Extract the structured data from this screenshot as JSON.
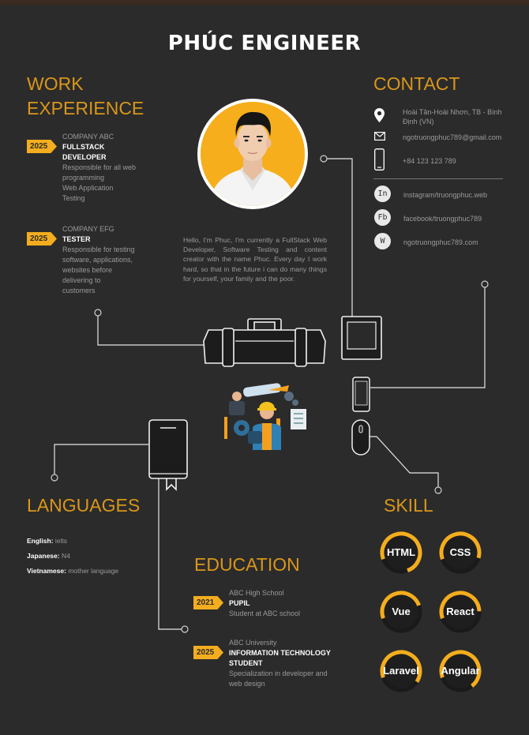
{
  "header": {
    "name": "PHÚC ENGINEER"
  },
  "work": {
    "title_line1": "WORK",
    "title_line2": "EXPERIENCE",
    "items": [
      {
        "year": "2025",
        "company": "COMPANY ABC",
        "role_line1": "FULLSTACK",
        "role_line2": "DEVELOPER",
        "desc": [
          "Responsible for all web",
          "programming",
          "Web Application",
          "Testing"
        ]
      },
      {
        "year": "2025",
        "company": "COMPANY EFG",
        "role_line1": "TESTER",
        "role_line2": "",
        "desc": [
          "Responsible for testing",
          "software, applications,",
          "websites before",
          "delivering to",
          "customers"
        ]
      }
    ]
  },
  "contact": {
    "title": "CONTACT",
    "address_line1": "Hoài Tân-Hoài Nhơn, TB - Bình",
    "address_line2": "Định (VN)",
    "email": "ngotruongphuc789@gmail.com",
    "phone": "+84 123 123 789",
    "socials": [
      {
        "glyph": "In",
        "text": "instagram/truongphuc.web",
        "icon": "instagram-icon"
      },
      {
        "glyph": "Fb",
        "text": "facebook/truongphuc789",
        "icon": "facebook-icon"
      },
      {
        "glyph": "W",
        "text": "ngotruongphuc789.com",
        "icon": "website-icon"
      }
    ]
  },
  "intro": "Hello, I'm Phuc, I'm currently a FullStack Web Developer, Software Testing and content creator with the name Phuc. Every day I work hard, so that in the future i can do many things for yourself, your family and the poor.",
  "languages": {
    "title": "LANGUAGES",
    "items": [
      {
        "name": "English:",
        "level": "ielts"
      },
      {
        "name": "Japanese:",
        "level": "N4"
      },
      {
        "name": "Vietnamese:",
        "level": "mother language"
      }
    ]
  },
  "education": {
    "title": "EDUCATION",
    "items": [
      {
        "year": "2021",
        "school": "ABC High School",
        "role_line1": "PUPIL",
        "role_line2": "",
        "desc": [
          "Student at ABC school"
        ]
      },
      {
        "year": "2025",
        "school": "ABC University",
        "role_line1": "INFORMATION TECHNOLOGY",
        "role_line2": "STUDENT",
        "desc": [
          "Specialization in developer and",
          "web design"
        ]
      }
    ]
  },
  "skill": {
    "title": "SKILL",
    "items": [
      {
        "label": "HTML",
        "level": 0.75
      },
      {
        "label": "CSS",
        "level": 0.6
      },
      {
        "label": "Vue",
        "level": 0.5
      },
      {
        "label": "React",
        "level": 0.55
      },
      {
        "label": "Laravel",
        "level": 0.65
      },
      {
        "label": "Angular",
        "level": 0.7
      }
    ]
  },
  "colors": {
    "background": "#2b2b2b",
    "accent": "#f4ad1e",
    "title": "#d9961b"
  }
}
